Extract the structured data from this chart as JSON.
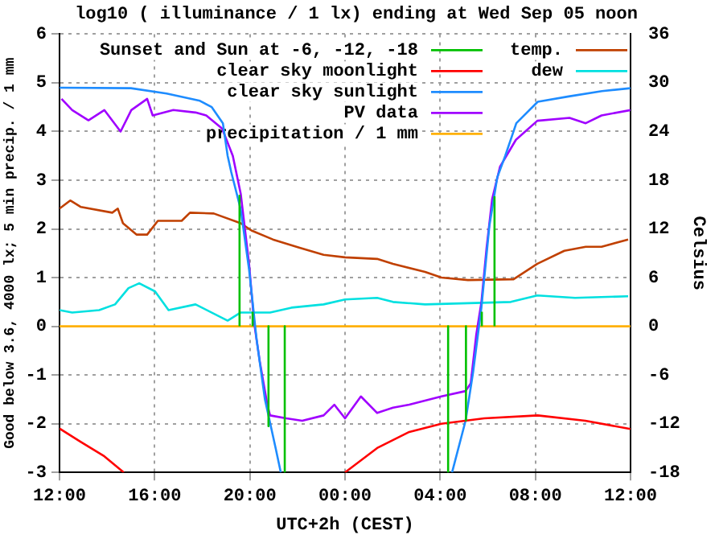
{
  "chart_data": {
    "type": "line",
    "title": "log10 ( illuminance / 1 lx) ending at Wed Sep 05 noon",
    "xlabel": "UTC+2h (CEST)",
    "ylabel": "Good below 3.6, 4000 lx; 5 min precip. / 1 mm",
    "y2label": "Celsius",
    "xlim": [
      "--09-04T12:00",
      "--09-05T12:00"
    ],
    "xticks": [
      {
        "value": "--09-04T12:00",
        "label": "12:00"
      },
      {
        "value": "--09-04T16:00",
        "label": "16:00"
      },
      {
        "value": "--09-04T20:00",
        "label": "20:00"
      },
      {
        "value": "--09-05T00:00",
        "label": "00:00"
      },
      {
        "value": "--09-05T04:00",
        "label": "04:00"
      },
      {
        "value": "--09-05T08:00",
        "label": "08:00"
      },
      {
        "value": "--09-05T12:00",
        "label": "12:00"
      }
    ],
    "ylim": [
      -3,
      6
    ],
    "yticks": [
      -3,
      -2,
      -1,
      0,
      1,
      2,
      3,
      4,
      5,
      6
    ],
    "y2lim": [
      -18,
      36
    ],
    "y2ticks": [
      -18,
      -12,
      -6,
      0,
      6,
      12,
      18,
      24,
      30,
      36
    ],
    "grid": true,
    "legend": "top left",
    "line_style": "solid",
    "marker": "none",
    "series": [
      {
        "name": "Sunset and Sun at -6, -12, -18",
        "color": "#00c000",
        "x": [
          "--09-04T19:34",
          "--09-04T19:34",
          "--09-04T19:35",
          "--09-04T20:07",
          "--09-04T20:07",
          "--09-04T20:08",
          "--09-04T20:47",
          "--09-04T20:47",
          "--09-04T20:48",
          "--09-04T21:28",
          "--09-04T21:28",
          "--09-04T21:29",
          "--09-05T04:20",
          "--09-05T04:20",
          "--09-05T04:21",
          "--09-05T05:05",
          "--09-05T05:05",
          "--09-05T05:06",
          "--09-05T05:45",
          "--09-05T05:45",
          "--09-05T05:46",
          "--09-05T06:17",
          "--09-05T06:17"
        ],
        "values": [
          0,
          2.7,
          null,
          0,
          0.3,
          null,
          0,
          -2.05,
          null,
          0,
          -3,
          null,
          0,
          -3,
          null,
          0,
          -1.93,
          null,
          0,
          0.3,
          null,
          0,
          2.67
        ]
      },
      {
        "name": "clear sky moonlight",
        "color": "#ff0000",
        "x": [
          "--09-04T12:00",
          "--09-04T12:53",
          "--09-04T13:53",
          "--09-04T14:42",
          "--09-04T14:43",
          "--09-05T00:00",
          "--09-05T01:21",
          "--09-05T02:42",
          "--09-05T04:03",
          "--09-05T05:51",
          "--09-05T08:06",
          "--09-05T10:06",
          "--09-05T12:00"
        ],
        "values": [
          -2.1,
          -2.37,
          -2.67,
          -3,
          null,
          -3,
          -2.5,
          -2.17,
          -2.0,
          -1.89,
          -1.83,
          -1.94,
          -2.11
        ]
      },
      {
        "name": "clear sky sunlight",
        "color": "#1e8cff",
        "x": [
          "--09-04T12:00",
          "--09-04T15:00",
          "--09-04T16:30",
          "--09-04T17:54",
          "--09-04T18:24",
          "--09-04T18:52",
          "--09-04T19:04",
          "--09-04T19:13",
          "--09-04T19:37",
          "--09-04T19:58",
          "--09-04T20:17",
          "--09-04T20:38",
          "--09-04T21:05",
          "--09-04T21:18",
          "--09-04T21:19",
          "--09-05T04:30",
          "--09-05T05:04",
          "--09-05T05:23",
          "--09-05T05:44",
          "--09-05T06:04",
          "--09-05T06:24",
          "--09-05T06:44",
          "--09-05T07:12",
          "--09-05T08:06",
          "--09-05T09:24",
          "--09-05T10:48",
          "--09-05T12:00"
        ],
        "values": [
          4.9,
          4.89,
          4.78,
          4.63,
          4.5,
          4.17,
          3.5,
          3.17,
          2.4,
          1.17,
          -0.27,
          -1.5,
          -2.5,
          -3,
          null,
          -3,
          -1.94,
          -0.94,
          0.39,
          2.06,
          3.06,
          3.5,
          4.17,
          4.61,
          4.72,
          4.83,
          4.89
        ]
      },
      {
        "name": "PV data",
        "color": "#a000ff",
        "x": [
          "--09-04T12:05",
          "--09-04T12:32",
          "--09-04T13:13",
          "--09-04T13:53",
          "--09-04T14:34",
          "--09-04T15:01",
          "--09-04T15:41",
          "--09-04T15:55",
          "--09-04T16:47",
          "--09-04T17:43",
          "--09-04T18:10",
          "--09-04T18:50",
          "--09-04T19:17",
          "--09-04T19:37",
          "--09-04T19:58",
          "--09-04T20:11",
          "--09-04T20:25",
          "--09-04T20:44",
          "--09-04T20:51",
          "--09-04T21:32",
          "--09-04T22:12",
          "--09-04T23:06",
          "--09-04T23:33",
          "--09-05T00:00",
          "--09-05T00:40",
          "--09-05T01:21",
          "--09-05T02:01",
          "--09-05T02:42",
          "--09-05T04:03",
          "--09-05T05:04",
          "--09-05T05:17",
          "--09-05T05:31",
          "--09-05T05:44",
          "--09-05T05:57",
          "--09-05T06:11",
          "--09-05T06:31",
          "--09-05T07:11",
          "--09-05T08:05",
          "--09-05T09:26",
          "--09-05T10:07",
          "--09-05T10:47",
          "--09-05T12:00"
        ],
        "values": [
          4.67,
          4.44,
          4.23,
          4.44,
          4.0,
          4.44,
          4.67,
          4.33,
          4.44,
          4.39,
          4.33,
          4.06,
          3.5,
          2.72,
          1.28,
          0.06,
          -0.72,
          -1.61,
          -1.83,
          -1.89,
          -1.94,
          -1.83,
          -1.61,
          -1.89,
          -1.44,
          -1.78,
          -1.67,
          -1.61,
          -1.44,
          -1.33,
          -1.17,
          -0.17,
          0.5,
          1.61,
          2.61,
          3.28,
          3.83,
          4.22,
          4.28,
          4.17,
          4.33,
          4.44
        ]
      },
      {
        "name": "precipitation / 1 mm",
        "color": "#ffb000",
        "x": [
          "--09-04T12:00",
          "--09-05T12:00"
        ],
        "values": [
          0,
          0
        ]
      },
      {
        "name": "temp.",
        "color": "#c04000",
        "axis": "y2",
        "x": [
          "--09-04T12:00",
          "--09-04T12:27",
          "--09-04T12:54",
          "--09-04T14:13",
          "--09-04T14:27",
          "--09-04T14:40",
          "--09-04T15:14",
          "--09-04T15:41",
          "--09-04T16:08",
          "--09-04T17:08",
          "--09-04T17:29",
          "--09-04T18:29",
          "--09-04T19:37",
          "--09-04T20:04",
          "--09-04T20:58",
          "--09-04T22:04",
          "--09-04T23:06",
          "--09-05T00:00",
          "--09-05T01:21",
          "--09-05T02:01",
          "--09-05T03:22",
          "--09-05T04:03",
          "--09-05T05:10",
          "--09-05T07:05",
          "--09-05T08:05",
          "--09-05T09:13",
          "--09-05T10:07",
          "--09-05T10:47",
          "--09-05T11:54"
        ],
        "values": [
          14.5,
          15.5,
          14.7,
          14.0,
          14.5,
          12.7,
          11.3,
          11.3,
          13.0,
          13.0,
          14.0,
          13.9,
          12.7,
          11.8,
          10.7,
          9.7,
          8.8,
          8.5,
          8.3,
          7.7,
          6.7,
          6.0,
          5.7,
          5.8,
          7.7,
          9.3,
          9.8,
          9.8,
          10.7
        ]
      },
      {
        "name": "dew",
        "color": "#00e0e0",
        "axis": "y2",
        "x": [
          "--09-04T12:00",
          "--09-04T12:32",
          "--09-04T13:40",
          "--09-04T14:20",
          "--09-04T14:54",
          "--09-04T15:21",
          "--09-04T16:01",
          "--09-04T16:35",
          "--09-04T17:43",
          "--09-04T19:04",
          "--09-04T19:37",
          "--09-04T20:51",
          "--09-04T21:45",
          "--09-04T23:06",
          "--09-05T00:00",
          "--09-05T01:21",
          "--09-05T02:01",
          "--09-05T03:22",
          "--09-05T06:58",
          "--09-05T08:05",
          "--09-05T09:40",
          "--09-05T11:54"
        ],
        "values": [
          2.0,
          1.7,
          2.0,
          2.7,
          4.7,
          5.3,
          4.3,
          2.0,
          2.7,
          0.7,
          1.7,
          1.7,
          2.3,
          2.7,
          3.3,
          3.5,
          3.0,
          2.7,
          3.0,
          3.8,
          3.5,
          3.7
        ]
      }
    ]
  }
}
